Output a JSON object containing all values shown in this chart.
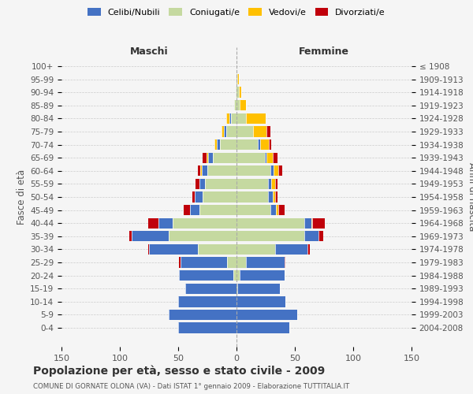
{
  "age_groups": [
    "0-4",
    "5-9",
    "10-14",
    "15-19",
    "20-24",
    "25-29",
    "30-34",
    "35-39",
    "40-44",
    "45-49",
    "50-54",
    "55-59",
    "60-64",
    "65-69",
    "70-74",
    "75-79",
    "80-84",
    "85-89",
    "90-94",
    "95-99",
    "100+"
  ],
  "birth_years": [
    "2004-2008",
    "1999-2003",
    "1994-1998",
    "1989-1993",
    "1984-1988",
    "1979-1983",
    "1974-1978",
    "1969-1973",
    "1964-1968",
    "1959-1963",
    "1954-1958",
    "1949-1953",
    "1944-1948",
    "1939-1943",
    "1934-1938",
    "1929-1933",
    "1924-1928",
    "1919-1923",
    "1914-1918",
    "1909-1913",
    "≤ 1908"
  ],
  "maschi": {
    "celibi": [
      50,
      58,
      50,
      44,
      46,
      40,
      42,
      32,
      12,
      8,
      7,
      5,
      5,
      4,
      3,
      2,
      1,
      0,
      0,
      0,
      0
    ],
    "coniugati": [
      0,
      0,
      0,
      0,
      3,
      8,
      33,
      58,
      55,
      32,
      29,
      27,
      25,
      20,
      14,
      9,
      5,
      2,
      1,
      0,
      0
    ],
    "vedovi": [
      0,
      0,
      0,
      0,
      0,
      0,
      0,
      0,
      0,
      0,
      0,
      0,
      1,
      2,
      2,
      2,
      3,
      0,
      0,
      0,
      0
    ],
    "divorziati": [
      0,
      0,
      0,
      0,
      0,
      1,
      1,
      2,
      9,
      5,
      2,
      3,
      2,
      3,
      0,
      0,
      0,
      0,
      0,
      0,
      0
    ]
  },
  "femmine": {
    "nubili": [
      45,
      52,
      42,
      36,
      38,
      33,
      28,
      12,
      6,
      5,
      4,
      3,
      3,
      2,
      2,
      0,
      0,
      0,
      0,
      0,
      0
    ],
    "coniugate": [
      0,
      0,
      0,
      1,
      3,
      8,
      33,
      58,
      58,
      29,
      27,
      27,
      29,
      24,
      18,
      14,
      8,
      3,
      2,
      1,
      0
    ],
    "vedove": [
      0,
      0,
      0,
      0,
      0,
      0,
      0,
      0,
      1,
      2,
      2,
      3,
      4,
      5,
      8,
      12,
      17,
      5,
      2,
      1,
      0
    ],
    "divorziate": [
      0,
      0,
      0,
      0,
      0,
      1,
      2,
      4,
      11,
      5,
      2,
      2,
      3,
      4,
      2,
      3,
      0,
      0,
      0,
      0,
      0
    ]
  },
  "colors": {
    "celibi": "#4472c4",
    "coniugati": "#c5d9a0",
    "vedovi": "#ffc000",
    "divorziati": "#c0000b"
  },
  "title": "Popolazione per età, sesso e stato civile - 2009",
  "subtitle": "COMUNE DI GORNATE OLONA (VA) - Dati ISTAT 1° gennaio 2009 - Elaborazione TUTTITALIA.IT",
  "xlabel_left": "Maschi",
  "xlabel_right": "Femmine",
  "ylabel_left": "Fasce di età",
  "ylabel_right": "Anni di nascita",
  "xlim": 150,
  "background_color": "#f5f5f5",
  "grid_color": "#cccccc",
  "legend_labels": [
    "Celibi/Nubili",
    "Coniugati/e",
    "Vedovi/e",
    "Divorziati/e"
  ]
}
